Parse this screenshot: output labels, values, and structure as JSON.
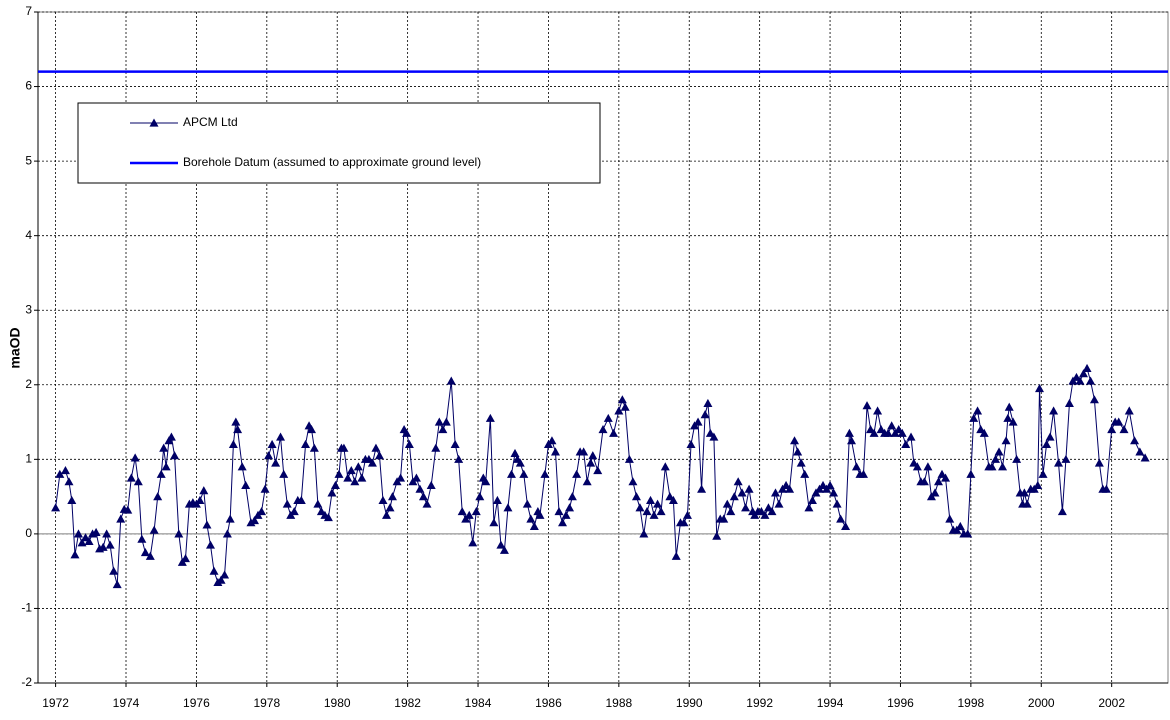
{
  "chart_data": {
    "type": "line",
    "y_label": "maOD",
    "xlim": [
      1971.5,
      2003.6
    ],
    "xticks": [
      1972,
      1974,
      1976,
      1978,
      1980,
      1982,
      1984,
      1986,
      1988,
      1990,
      1992,
      1994,
      1996,
      1998,
      2000,
      2002
    ],
    "ylim": [
      -2,
      7
    ],
    "yticks": [
      -2,
      -1,
      0,
      1,
      2,
      3,
      4,
      5,
      6,
      7
    ],
    "grid": true,
    "legend": "upper left",
    "series": [
      {
        "name": "APCM Ltd",
        "color": "#000066",
        "marker": "triangle",
        "x": [
          1972.0,
          1972.12,
          1972.28,
          1972.38,
          1972.46,
          1972.55,
          1972.65,
          1972.75,
          1972.85,
          1972.95,
          1973.05,
          1973.15,
          1973.25,
          1973.35,
          1973.45,
          1973.55,
          1973.65,
          1973.75,
          1973.85,
          1973.95,
          1974.05,
          1974.15,
          1974.26,
          1974.35,
          1974.45,
          1974.55,
          1974.69,
          1974.8,
          1974.9,
          1975.0,
          1975.07,
          1975.14,
          1975.22,
          1975.29,
          1975.38,
          1975.5,
          1975.6,
          1975.69,
          1975.8,
          1975.9,
          1976.0,
          1976.1,
          1976.21,
          1976.3,
          1976.4,
          1976.5,
          1976.61,
          1976.7,
          1976.8,
          1976.88,
          1976.96,
          1977.05,
          1977.12,
          1977.17,
          1977.3,
          1977.4,
          1977.55,
          1977.65,
          1977.75,
          1977.85,
          1977.95,
          1978.05,
          1978.15,
          1978.25,
          1978.39,
          1978.48,
          1978.58,
          1978.68,
          1978.78,
          1978.88,
          1978.98,
          1979.1,
          1979.2,
          1979.27,
          1979.35,
          1979.45,
          1979.55,
          1979.65,
          1979.75,
          1979.85,
          1979.95,
          1980.05,
          1980.12,
          1980.19,
          1980.3,
          1980.4,
          1980.5,
          1980.6,
          1980.7,
          1980.8,
          1980.9,
          1981.0,
          1981.1,
          1981.2,
          1981.3,
          1981.4,
          1981.5,
          1981.57,
          1981.7,
          1981.8,
          1981.9,
          1981.97,
          1982.05,
          1982.15,
          1982.25,
          1982.35,
          1982.45,
          1982.55,
          1982.67,
          1982.8,
          1982.9,
          1983.0,
          1983.1,
          1983.24,
          1983.35,
          1983.45,
          1983.55,
          1983.65,
          1983.75,
          1983.85,
          1983.95,
          1984.05,
          1984.15,
          1984.22,
          1984.35,
          1984.45,
          1984.55,
          1984.65,
          1984.75,
          1984.85,
          1984.95,
          1985.05,
          1985.12,
          1985.2,
          1985.3,
          1985.4,
          1985.5,
          1985.6,
          1985.7,
          1985.76,
          1985.9,
          1986.0,
          1986.1,
          1986.2,
          1986.3,
          1986.4,
          1986.5,
          1986.6,
          1986.68,
          1986.8,
          1986.9,
          1987.0,
          1987.1,
          1987.2,
          1987.26,
          1987.4,
          1987.55,
          1987.7,
          1987.85,
          1988.0,
          1988.1,
          1988.18,
          1988.3,
          1988.4,
          1988.5,
          1988.6,
          1988.71,
          1988.8,
          1988.9,
          1989.0,
          1989.1,
          1989.2,
          1989.32,
          1989.45,
          1989.55,
          1989.63,
          1989.75,
          1989.85,
          1989.95,
          1990.05,
          1990.15,
          1990.25,
          1990.35,
          1990.45,
          1990.53,
          1990.6,
          1990.7,
          1990.78,
          1990.88,
          1990.98,
          1991.08,
          1991.18,
          1991.28,
          1991.39,
          1991.5,
          1991.6,
          1991.7,
          1991.8,
          1991.86,
          1991.95,
          1992.05,
          1992.15,
          1992.25,
          1992.35,
          1992.45,
          1992.55,
          1992.65,
          1992.75,
          1992.85,
          1992.99,
          1993.08,
          1993.18,
          1993.28,
          1993.4,
          1993.5,
          1993.6,
          1993.7,
          1993.8,
          1993.9,
          1994.0,
          1994.1,
          1994.2,
          1994.3,
          1994.44,
          1994.55,
          1994.61,
          1994.75,
          1994.85,
          1994.95,
          1995.05,
          1995.15,
          1995.25,
          1995.35,
          1995.45,
          1995.55,
          1995.65,
          1995.75,
          1995.85,
          1995.95,
          1996.05,
          1996.15,
          1996.3,
          1996.38,
          1996.48,
          1996.58,
          1996.68,
          1996.78,
          1996.88,
          1996.98,
          1997.08,
          1997.18,
          1997.28,
          1997.4,
          1997.5,
          1997.6,
          1997.7,
          1997.8,
          1997.91,
          1998.0,
          1998.08,
          1998.19,
          1998.28,
          1998.38,
          1998.51,
          1998.6,
          1998.7,
          1998.8,
          1998.9,
          1999.0,
          1999.05,
          1999.09,
          1999.2,
          1999.3,
          1999.4,
          1999.47,
          1999.52,
          1999.6,
          1999.7,
          1999.8,
          1999.9,
          1999.95,
          2000.05,
          2000.15,
          2000.25,
          2000.35,
          2000.49,
          2000.6,
          2000.7,
          2000.8,
          2000.9,
          2001.0,
          2001.1,
          2001.2,
          2001.3,
          2001.4,
          2001.51,
          2001.65,
          2001.75,
          2001.85,
          2002.0,
          2002.1,
          2002.2,
          2002.35,
          2002.5,
          2002.65,
          2002.8,
          2002.95
        ],
        "values": [
          0.35,
          0.8,
          0.85,
          0.7,
          0.45,
          -0.28,
          0.0,
          -0.12,
          -0.05,
          -0.1,
          0.0,
          0.02,
          -0.2,
          -0.18,
          0.0,
          -0.15,
          -0.5,
          -0.68,
          0.2,
          0.33,
          0.32,
          0.75,
          1.02,
          0.7,
          -0.07,
          -0.25,
          -0.3,
          0.05,
          0.5,
          0.8,
          1.15,
          0.9,
          1.25,
          1.3,
          1.05,
          0.0,
          -0.38,
          -0.33,
          0.4,
          0.42,
          0.4,
          0.45,
          0.58,
          0.12,
          -0.15,
          -0.5,
          -0.65,
          -0.62,
          -0.55,
          0.0,
          0.2,
          1.2,
          1.5,
          1.4,
          0.9,
          0.65,
          0.15,
          0.18,
          0.25,
          0.3,
          0.6,
          1.05,
          1.2,
          0.95,
          1.3,
          0.8,
          0.4,
          0.25,
          0.3,
          0.45,
          0.45,
          1.2,
          1.45,
          1.4,
          1.15,
          0.4,
          0.3,
          0.25,
          0.22,
          0.55,
          0.65,
          0.8,
          1.15,
          1.15,
          0.75,
          0.85,
          0.7,
          0.9,
          0.75,
          1.0,
          1.0,
          0.95,
          1.15,
          1.05,
          0.45,
          0.25,
          0.35,
          0.5,
          0.7,
          0.75,
          1.4,
          1.35,
          1.2,
          0.7,
          0.75,
          0.6,
          0.5,
          0.4,
          0.65,
          1.15,
          1.5,
          1.4,
          1.5,
          2.05,
          1.2,
          1.0,
          0.3,
          0.2,
          0.25,
          -0.12,
          0.3,
          0.5,
          0.75,
          0.7,
          1.55,
          0.15,
          0.45,
          -0.15,
          -0.22,
          0.35,
          0.8,
          1.08,
          1.0,
          0.95,
          0.8,
          0.4,
          0.2,
          0.1,
          0.3,
          0.25,
          0.8,
          1.2,
          1.25,
          1.1,
          0.3,
          0.15,
          0.25,
          0.35,
          0.5,
          0.8,
          1.1,
          1.1,
          0.7,
          0.95,
          1.05,
          0.85,
          1.4,
          1.55,
          1.35,
          1.65,
          1.8,
          1.7,
          1.0,
          0.7,
          0.5,
          0.35,
          0.0,
          0.3,
          0.45,
          0.25,
          0.4,
          0.3,
          0.9,
          0.5,
          0.45,
          -0.3,
          0.15,
          0.15,
          0.25,
          1.2,
          1.45,
          1.5,
          0.6,
          1.6,
          1.75,
          1.35,
          1.3,
          -0.03,
          0.2,
          0.2,
          0.4,
          0.3,
          0.5,
          0.7,
          0.55,
          0.35,
          0.6,
          0.3,
          0.25,
          0.3,
          0.3,
          0.25,
          0.35,
          0.3,
          0.55,
          0.4,
          0.6,
          0.65,
          0.6,
          1.25,
          1.1,
          0.95,
          0.8,
          0.35,
          0.45,
          0.55,
          0.6,
          0.65,
          0.6,
          0.65,
          0.55,
          0.4,
          0.2,
          0.1,
          1.35,
          1.25,
          0.9,
          0.8,
          0.8,
          1.72,
          1.4,
          1.35,
          1.65,
          1.4,
          1.35,
          1.35,
          1.45,
          1.35,
          1.4,
          1.35,
          1.2,
          1.3,
          0.95,
          0.9,
          0.7,
          0.7,
          0.9,
          0.5,
          0.55,
          0.7,
          0.8,
          0.75,
          0.2,
          0.05,
          0.05,
          0.1,
          0.0,
          0.0,
          0.8,
          1.55,
          1.65,
          1.4,
          1.35,
          0.9,
          0.9,
          1.0,
          1.1,
          0.9,
          1.25,
          1.55,
          1.7,
          1.5,
          1.0,
          0.55,
          0.4,
          0.55,
          0.4,
          0.6,
          0.6,
          0.65,
          1.95,
          0.8,
          1.2,
          1.3,
          1.65,
          0.95,
          0.3,
          1.0,
          1.75,
          2.05,
          2.1,
          2.05,
          2.15,
          2.22,
          2.05,
          1.8,
          0.95,
          0.6,
          0.6,
          1.4,
          1.5,
          1.5,
          1.4,
          1.65,
          1.25,
          1.1,
          1.02
        ]
      },
      {
        "name": "Borehole Datum (assumed to approximate ground level)",
        "color": "#0000ff",
        "marker": "none",
        "x": [
          1971.5,
          2003.6
        ],
        "values": [
          6.2,
          6.2
        ]
      }
    ]
  }
}
